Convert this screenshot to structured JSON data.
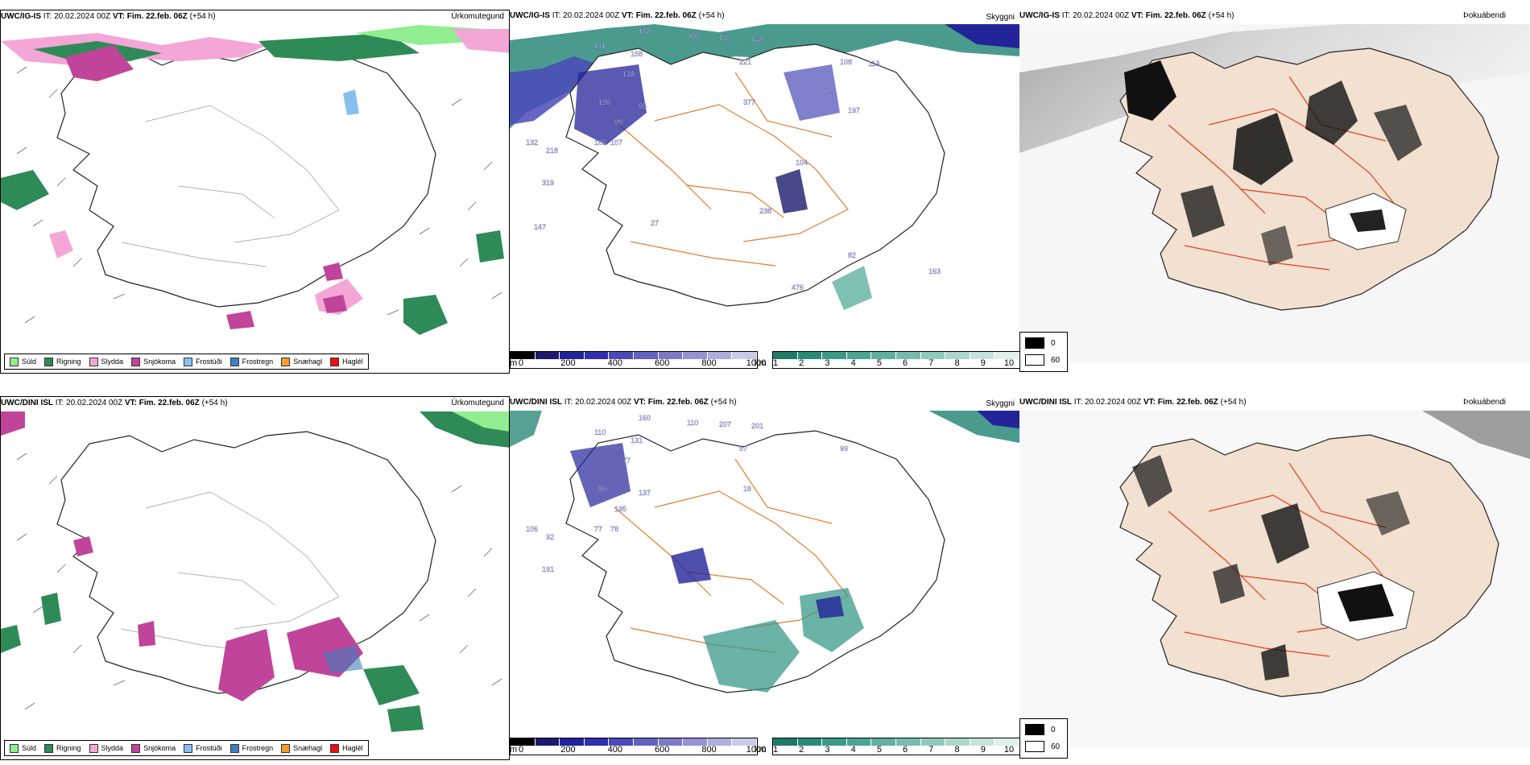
{
  "rows": [
    {
      "id": "row1",
      "model": "UWC/IG-IS",
      "it_label": "IT:",
      "it_value": "20.02.2024 00Z",
      "vt_label": "VT:",
      "vt_value": "Fim. 22.feb. 06Z",
      "lead": "(+54 h)",
      "panels": {
        "precip": {
          "title": "Úrkomutegund"
        },
        "cloud": {
          "title": "Skyggni"
        },
        "fog": {
          "title": "Þokuábendi"
        }
      },
      "cloud_labels": [
        "168",
        "206",
        "113",
        "148",
        "111",
        "158",
        "221",
        "138",
        "377",
        "196",
        "95",
        "99",
        "132",
        "218",
        "102",
        "107",
        "319",
        "108",
        "113",
        "65",
        "197",
        "104",
        "238",
        "147",
        "27",
        "82",
        "476",
        "163"
      ]
    },
    {
      "id": "row2",
      "model": "UWC/DINI ISL",
      "it_label": "IT:",
      "it_value": "20.02.2024 00Z",
      "vt_label": "VT:",
      "vt_value": "Fim. 22.feb. 06Z",
      "lead": "(+54 h)",
      "panels": {
        "precip": {
          "title": "Úrkomutegund"
        },
        "cloud": {
          "title": "Skyggni"
        },
        "fog": {
          "title": "Þokuábendi"
        }
      },
      "cloud_labels": [
        "160",
        "110",
        "207",
        "201",
        "110",
        "131",
        "57",
        "77",
        "18",
        "86",
        "137",
        "195",
        "106",
        "92",
        "77",
        "78",
        "191",
        "99"
      ]
    }
  ],
  "precip_legend": [
    {
      "label": "Súld",
      "color": "#90ee90"
    },
    {
      "label": "Rigning",
      "color": "#2e8b57"
    },
    {
      "label": "Slydda",
      "color": "#f4a6d7"
    },
    {
      "label": "Snjókoma",
      "color": "#c0459a"
    },
    {
      "label": "Frostúði",
      "color": "#87bfee"
    },
    {
      "label": "Frostregn",
      "color": "#3f7fbf"
    },
    {
      "label": "Snæhagl",
      "color": "#f0a030"
    },
    {
      "label": "Haglél",
      "color": "#e81010"
    }
  ],
  "ceiling_scale": {
    "unit": "m",
    "ticks": [
      "0",
      "200",
      "400",
      "600",
      "800",
      "1000"
    ],
    "colors": [
      "#000000",
      "#1a1a6e",
      "#23239a",
      "#2f2fb0",
      "#4a4ab8",
      "#6262c0",
      "#7a7ac8",
      "#9494d4",
      "#aeaedd",
      "#cacaea"
    ]
  },
  "visibility_scale": {
    "unit": "km",
    "ticks": [
      "1",
      "2",
      "3",
      "4",
      "5",
      "6",
      "7",
      "8",
      "9",
      "10"
    ],
    "colors": [
      "#1f7a6a",
      "#2a8a7a",
      "#3a9a8a",
      "#4aa595",
      "#5fb0a2",
      "#78bcaf",
      "#92c9bd",
      "#acd6cc",
      "#c6e3db",
      "#e0f0eb"
    ]
  },
  "fog_legend": {
    "entries": [
      {
        "value": "0",
        "color": "#000000"
      },
      {
        "value": "60",
        "color": "#ffffff"
      }
    ]
  }
}
